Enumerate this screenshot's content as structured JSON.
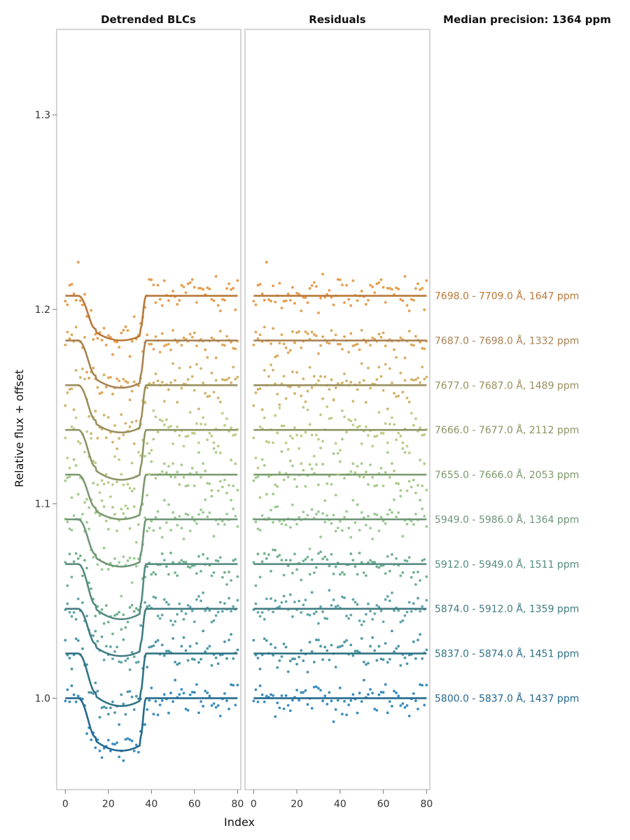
{
  "chart_data": {
    "type": "scatter",
    "panels": [
      {
        "title": "Detrended BLCs",
        "xlabel": "Index",
        "ylabel": "Relative flux + offset"
      },
      {
        "title": "Residuals"
      }
    ],
    "header_right": "Median precision: 1364 ppm",
    "x_ticks": [
      0,
      20,
      40,
      60,
      80
    ],
    "y_ticks": [
      "1.0",
      "1.1",
      "1.2",
      "1.3"
    ],
    "ylim": [
      0.953,
      1.344
    ],
    "xlim": [
      -4,
      81.5
    ],
    "n_points": 81,
    "transit": {
      "ingress_start": 6,
      "ingress_end": 14,
      "egress_start": 35,
      "egress_end": 37.5,
      "mid": 26
    },
    "series": [
      {
        "name": "5800.0 - 5837.0 Å, 1437 ppm",
        "baseline": 1.0,
        "depth": 0.02,
        "ppm": 1437,
        "color": "#24688e"
      },
      {
        "name": "5837.0 - 5874.0 Å, 1451 ppm",
        "baseline": 1.023,
        "depth": 0.02,
        "ppm": 1451,
        "color": "#2f7386"
      },
      {
        "name": "5874.0 - 5912.0 Å, 1359 ppm",
        "baseline": 1.046,
        "depth": 0.018,
        "ppm": 1359,
        "color": "#417c82"
      },
      {
        "name": "5912.0 - 5949.0 Å, 1511 ppm",
        "baseline": 1.069,
        "depth": 0.021,
        "ppm": 1511,
        "color": "#548a80"
      },
      {
        "name": "5949.0 - 5986.0 Å, 1364 ppm",
        "baseline": 1.092,
        "depth": 0.018,
        "ppm": 1364,
        "color": "#6e9678"
      },
      {
        "name": "7655.0 - 7666.0 Å, 2053 ppm",
        "baseline": 1.115,
        "depth": 0.017,
        "ppm": 2053,
        "color": "#7c9a6e"
      },
      {
        "name": "7666.0 - 7677.0 Å, 2112 ppm",
        "baseline": 1.138,
        "depth": 0.019,
        "ppm": 2112,
        "color": "#8c9565"
      },
      {
        "name": "7677.0 - 7687.0 Å, 1489 ppm",
        "baseline": 1.161,
        "depth": 0.018,
        "ppm": 1489,
        "color": "#9a8f5e"
      },
      {
        "name": "7687.0 - 7698.0 Å, 1332 ppm",
        "baseline": 1.184,
        "depth": 0.018,
        "ppm": 1332,
        "color": "#a88255"
      },
      {
        "name": "7698.0 - 7709.0 Å, 1647 ppm",
        "baseline": 1.207,
        "depth": 0.017,
        "ppm": 1647,
        "color": "#b87838"
      }
    ],
    "point_colors": [
      "#3a8ebf",
      "#4c97a8",
      "#62a6a8",
      "#72b28f",
      "#9acb92",
      "#a7cc8a",
      "#bccd85",
      "#d3b268",
      "#e0a657",
      "#e99b4a"
    ]
  }
}
